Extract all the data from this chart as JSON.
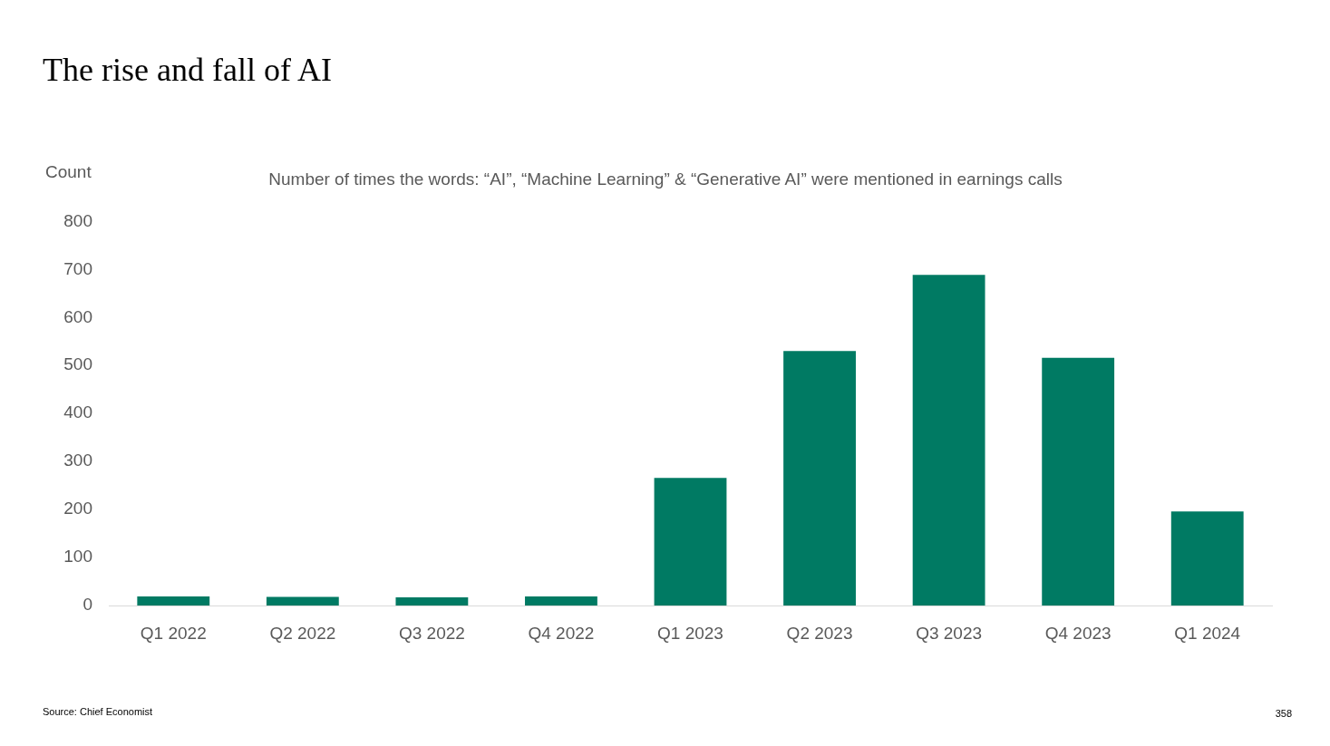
{
  "chart_data": {
    "type": "bar",
    "title": "The rise and fall of AI",
    "subtitle": "Number of times the words: “AI”, “Machine Learning” & “Generative AI” were mentioned in earnings calls",
    "ylabel": "Count",
    "categories": [
      "Q1 2022",
      "Q2 2022",
      "Q3 2022",
      "Q4 2022",
      "Q1 2023",
      "Q2 2023",
      "Q3 2023",
      "Q4 2023",
      "Q1 2024"
    ],
    "values": [
      19,
      18,
      17,
      19,
      266,
      530,
      689,
      516,
      196
    ],
    "color": "#007a63",
    "ylim": [
      0,
      800
    ],
    "yticks": [
      0,
      100,
      200,
      300,
      400,
      500,
      600,
      700,
      800
    ],
    "grid": false,
    "annotations": [
      "Source: Chief Economist",
      "358"
    ]
  }
}
